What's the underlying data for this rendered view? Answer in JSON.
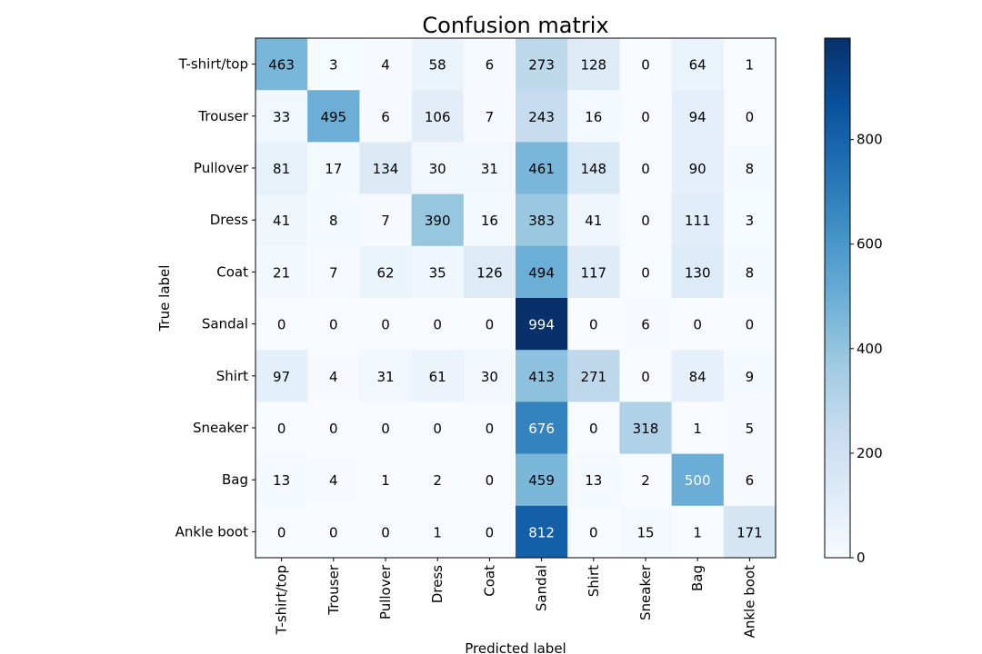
{
  "chart_data": {
    "type": "heatmap",
    "title": "Confusion matrix",
    "xlabel": "Predicted label",
    "ylabel": "True label",
    "x_categories": [
      "T-shirt/top",
      "Trouser",
      "Pullover",
      "Dress",
      "Coat",
      "Sandal",
      "Shirt",
      "Sneaker",
      "Bag",
      "Ankle boot"
    ],
    "y_categories": [
      "T-shirt/top",
      "Trouser",
      "Pullover",
      "Dress",
      "Coat",
      "Sandal",
      "Shirt",
      "Sneaker",
      "Bag",
      "Ankle boot"
    ],
    "values": [
      [
        463,
        3,
        4,
        58,
        6,
        273,
        128,
        0,
        64,
        1
      ],
      [
        33,
        495,
        6,
        106,
        7,
        243,
        16,
        0,
        94,
        0
      ],
      [
        81,
        17,
        134,
        30,
        31,
        461,
        148,
        0,
        90,
        8
      ],
      [
        41,
        8,
        7,
        390,
        16,
        383,
        41,
        0,
        111,
        3
      ],
      [
        21,
        7,
        62,
        35,
        126,
        494,
        117,
        0,
        130,
        8
      ],
      [
        0,
        0,
        0,
        0,
        0,
        994,
        0,
        6,
        0,
        0
      ],
      [
        97,
        4,
        31,
        61,
        30,
        413,
        271,
        0,
        84,
        9
      ],
      [
        0,
        0,
        0,
        0,
        0,
        676,
        0,
        318,
        1,
        5
      ],
      [
        13,
        4,
        1,
        2,
        0,
        459,
        13,
        2,
        500,
        6
      ],
      [
        0,
        0,
        0,
        1,
        0,
        812,
        0,
        15,
        1,
        171
      ]
    ],
    "colormap": "Blues",
    "vmin": 0,
    "vmax": 994,
    "colorbar_ticks": [
      0,
      200,
      400,
      600,
      800
    ],
    "grid": false
  }
}
